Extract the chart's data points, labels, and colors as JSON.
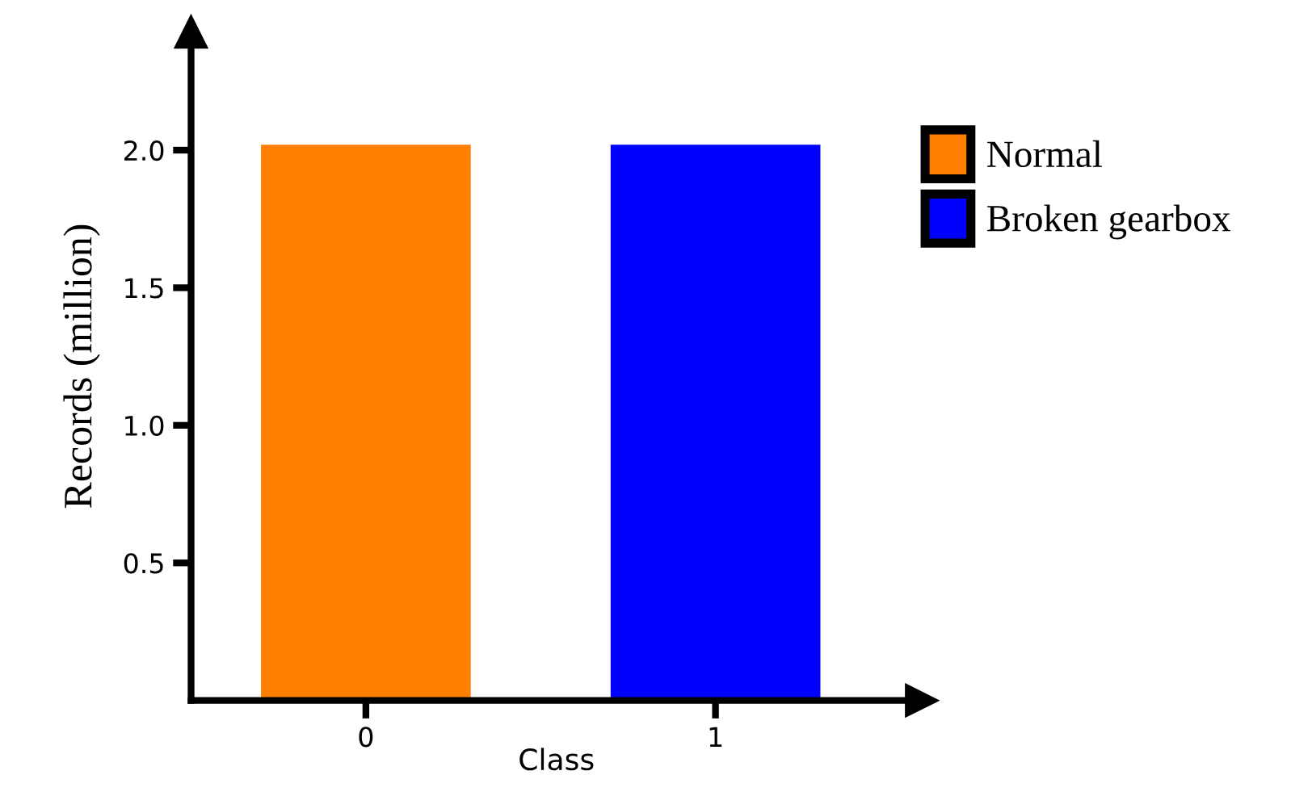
{
  "chart_data": {
    "type": "bar",
    "xlabel": "Class",
    "ylabel": "Records (million)",
    "categories": [
      "0",
      "1"
    ],
    "series": [
      {
        "name": "Normal",
        "color": "#ff8000",
        "values": [
          2.02,
          null
        ]
      },
      {
        "name": "Broken gearbox",
        "color": "#0000ff",
        "values": [
          null,
          2.02
        ]
      }
    ],
    "ylim": [
      0,
      2.43
    ],
    "yticks": [
      {
        "value": 0.5,
        "label": "0.5"
      },
      {
        "value": 1,
        "label": "1.0"
      },
      {
        "value": 1.5,
        "label": "1.5"
      },
      {
        "value": 2,
        "label": "2.0"
      }
    ],
    "grid": false,
    "legend": "right"
  }
}
